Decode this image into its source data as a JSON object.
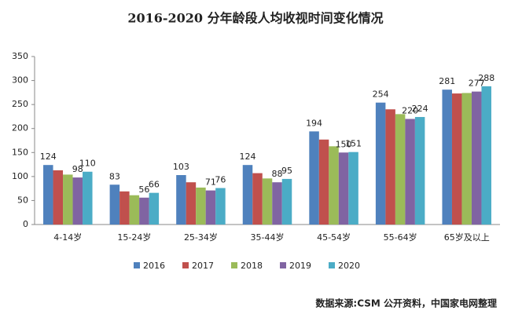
{
  "chart_data": {
    "type": "bar",
    "title": "2016-2020 分年龄段人均收视时间变化情况",
    "source": "数据来源:CSM 公开资料，中国家电网整理",
    "categories": [
      "4-14岁",
      "15-24岁",
      "25-34岁",
      "35-44岁",
      "45-54岁",
      "55-64岁",
      "65岁及以上"
    ],
    "series": [
      {
        "name": "2016",
        "color": "#4f81bd",
        "values": [
          124,
          83,
          103,
          124,
          194,
          254,
          281
        ],
        "value_labels": [
          "124",
          "83",
          "103",
          "124",
          "194",
          "254",
          "281"
        ]
      },
      {
        "name": "2017",
        "color": "#c0504d",
        "values": [
          113,
          69,
          88,
          107,
          177,
          240,
          273
        ],
        "value_labels": [
          null,
          null,
          null,
          null,
          null,
          null,
          null
        ]
      },
      {
        "name": "2018",
        "color": "#9bbb59",
        "values": [
          104,
          61,
          77,
          96,
          163,
          230,
          274
        ],
        "value_labels": [
          null,
          null,
          null,
          null,
          null,
          null,
          null
        ]
      },
      {
        "name": "2019",
        "color": "#8064a2",
        "values": [
          98,
          56,
          71,
          88,
          150,
          220,
          277
        ],
        "value_labels": [
          "98",
          "56",
          "71",
          "88",
          "150",
          "220",
          "277"
        ]
      },
      {
        "name": "2020",
        "color": "#4bacc6",
        "values": [
          110,
          66,
          76,
          95,
          151,
          224,
          288
        ],
        "value_labels": [
          "110",
          "66",
          "76",
          "95",
          "151",
          "224",
          "288"
        ]
      }
    ],
    "ylim": [
      0,
      350
    ],
    "yticks": [
      0,
      50,
      100,
      150,
      200,
      250,
      300,
      350
    ],
    "grid": false,
    "legend": "bottom"
  }
}
